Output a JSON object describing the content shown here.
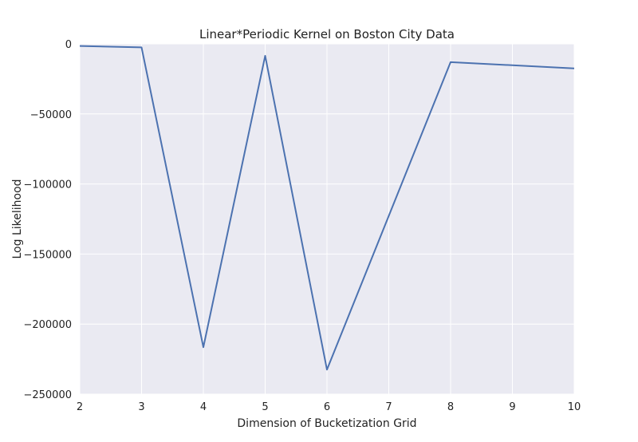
{
  "chart_data": {
    "type": "line",
    "title": "Linear*Periodic Kernel on Boston City Data",
    "xlabel": "Dimension of Bucketization Grid",
    "ylabel": "Log Likelihood",
    "xlim": [
      2,
      10
    ],
    "ylim": [
      -250000,
      0
    ],
    "xticks": [
      2,
      3,
      4,
      5,
      6,
      7,
      8,
      9,
      10
    ],
    "xtick_labels": [
      "2",
      "3",
      "4",
      "5",
      "6",
      "7",
      "8",
      "9",
      "10"
    ],
    "yticks": [
      0,
      -50000,
      -100000,
      -150000,
      -200000,
      -250000
    ],
    "ytick_labels": [
      "0",
      "−50000",
      "−100000",
      "−150000",
      "−200000",
      "−250000"
    ],
    "grid": true,
    "background_color": "#eaeaf2",
    "grid_color": "#ffffff",
    "series": [
      {
        "color": "#4c72b0",
        "x": [
          2,
          3,
          4,
          5,
          6,
          8,
          10
        ],
        "y": [
          -1500,
          -2500,
          -216500,
          -8500,
          -232500,
          -13000,
          -17500
        ]
      }
    ]
  }
}
